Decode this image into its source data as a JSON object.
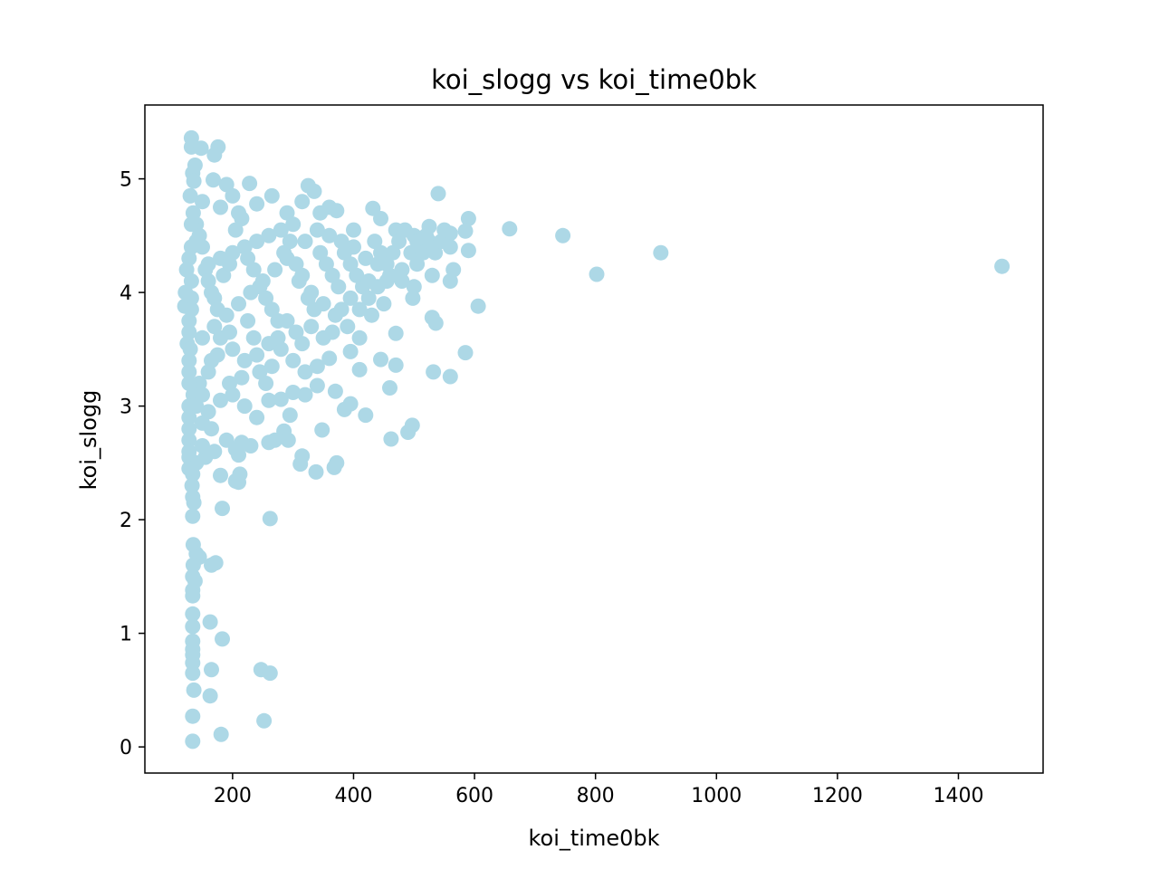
{
  "chart_data": {
    "type": "scatter",
    "title": "koi_slogg vs koi_time0bk",
    "xlabel": "koi_time0bk",
    "ylabel": "koi_slogg",
    "xlim": [
      55,
      1540
    ],
    "ylim": [
      -0.23,
      5.65
    ],
    "xticks": [
      200,
      400,
      600,
      800,
      1000,
      1200,
      1400
    ],
    "yticks": [
      0,
      1,
      2,
      3,
      4,
      5
    ],
    "grid": false,
    "legend": "none",
    "marker_color": "#add8e6",
    "points": [
      [
        132,
        5.36
      ],
      [
        132,
        5.28
      ],
      [
        148,
        5.27
      ],
      [
        176,
        5.28
      ],
      [
        170,
        5.21
      ],
      [
        138,
        5.12
      ],
      [
        134,
        5.05
      ],
      [
        136,
        4.98
      ],
      [
        168,
        4.99
      ],
      [
        190,
        4.95
      ],
      [
        228,
        4.96
      ],
      [
        200,
        4.85
      ],
      [
        150,
        4.8
      ],
      [
        180,
        4.75
      ],
      [
        210,
        4.7
      ],
      [
        240,
        4.78
      ],
      [
        265,
        4.85
      ],
      [
        290,
        4.7
      ],
      [
        325,
        4.94
      ],
      [
        335,
        4.89
      ],
      [
        315,
        4.8
      ],
      [
        345,
        4.7
      ],
      [
        360,
        4.75
      ],
      [
        372,
        4.72
      ],
      [
        400,
        4.55
      ],
      [
        432,
        4.74
      ],
      [
        445,
        4.65
      ],
      [
        470,
        4.55
      ],
      [
        500,
        4.5
      ],
      [
        525,
        4.58
      ],
      [
        540,
        4.87
      ],
      [
        560,
        4.52
      ],
      [
        590,
        4.65
      ],
      [
        585,
        4.54
      ],
      [
        560,
        4.4
      ],
      [
        590,
        4.37
      ],
      [
        658,
        4.56
      ],
      [
        746,
        4.5
      ],
      [
        802,
        4.16
      ],
      [
        908,
        4.35
      ],
      [
        1472,
        4.23
      ],
      [
        565,
        4.2
      ],
      [
        560,
        4.1
      ],
      [
        530,
        4.15
      ],
      [
        500,
        4.05
      ],
      [
        480,
        4.2
      ],
      [
        460,
        4.15
      ],
      [
        440,
        4.25
      ],
      [
        420,
        4.3
      ],
      [
        400,
        4.4
      ],
      [
        380,
        4.45
      ],
      [
        360,
        4.5
      ],
      [
        340,
        4.55
      ],
      [
        320,
        4.45
      ],
      [
        300,
        4.6
      ],
      [
        280,
        4.55
      ],
      [
        260,
        4.5
      ],
      [
        240,
        4.45
      ],
      [
        220,
        4.4
      ],
      [
        200,
        4.35
      ],
      [
        180,
        4.3
      ],
      [
        160,
        4.25
      ],
      [
        140,
        4.45
      ],
      [
        128,
        4.3
      ],
      [
        124,
        4.2
      ],
      [
        122,
        4.0
      ],
      [
        121,
        3.88
      ],
      [
        125,
        3.55
      ],
      [
        130,
        3.5
      ],
      [
        150,
        3.6
      ],
      [
        170,
        3.7
      ],
      [
        190,
        3.8
      ],
      [
        210,
        3.9
      ],
      [
        230,
        4.0
      ],
      [
        250,
        4.1
      ],
      [
        270,
        4.2
      ],
      [
        290,
        4.3
      ],
      [
        310,
        4.1
      ],
      [
        330,
        4.0
      ],
      [
        350,
        3.9
      ],
      [
        370,
        3.8
      ],
      [
        390,
        3.7
      ],
      [
        410,
        3.6
      ],
      [
        430,
        3.8
      ],
      [
        450,
        3.9
      ],
      [
        470,
        3.64
      ],
      [
        498,
        3.95
      ],
      [
        530,
        3.78
      ],
      [
        536,
        3.73
      ],
      [
        606,
        3.88
      ],
      [
        585,
        3.47
      ],
      [
        560,
        3.26
      ],
      [
        532,
        3.3
      ],
      [
        470,
        3.36
      ],
      [
        445,
        3.41
      ],
      [
        410,
        3.32
      ],
      [
        395,
        3.48
      ],
      [
        360,
        3.42
      ],
      [
        340,
        3.35
      ],
      [
        320,
        3.3
      ],
      [
        300,
        3.4
      ],
      [
        280,
        3.5
      ],
      [
        260,
        3.55
      ],
      [
        240,
        3.45
      ],
      [
        220,
        3.4
      ],
      [
        200,
        3.5
      ],
      [
        175,
        3.45
      ],
      [
        160,
        3.3
      ],
      [
        145,
        3.2
      ],
      [
        135,
        3.1
      ],
      [
        140,
        3.0
      ],
      [
        160,
        2.95
      ],
      [
        180,
        3.05
      ],
      [
        200,
        3.1
      ],
      [
        220,
        3.0
      ],
      [
        240,
        2.9
      ],
      [
        260,
        3.05
      ],
      [
        280,
        3.06
      ],
      [
        300,
        3.12
      ],
      [
        320,
        3.1
      ],
      [
        340,
        3.18
      ],
      [
        370,
        3.13
      ],
      [
        385,
        2.97
      ],
      [
        395,
        3.02
      ],
      [
        420,
        2.92
      ],
      [
        460,
        3.16
      ],
      [
        490,
        2.77
      ],
      [
        497,
        2.83
      ],
      [
        462,
        2.71
      ],
      [
        295,
        2.92
      ],
      [
        285,
        2.78
      ],
      [
        292,
        2.7
      ],
      [
        270,
        2.7
      ],
      [
        260,
        2.68
      ],
      [
        230,
        2.65
      ],
      [
        215,
        2.68
      ],
      [
        205,
        2.62
      ],
      [
        190,
        2.7
      ],
      [
        170,
        2.6
      ],
      [
        155,
        2.55
      ],
      [
        140,
        2.5
      ],
      [
        134,
        2.4
      ],
      [
        133,
        2.3
      ],
      [
        134,
        2.2
      ],
      [
        136,
        2.15
      ],
      [
        134,
        2.03
      ],
      [
        183,
        2.1
      ],
      [
        262,
        2.01
      ],
      [
        210,
        2.57
      ],
      [
        212,
        2.4
      ],
      [
        205,
        2.34
      ],
      [
        210,
        2.33
      ],
      [
        180,
        2.39
      ],
      [
        348,
        2.79
      ],
      [
        315,
        2.56
      ],
      [
        312,
        2.49
      ],
      [
        338,
        2.42
      ],
      [
        368,
        2.46
      ],
      [
        372,
        2.5
      ],
      [
        135,
        1.78
      ],
      [
        140,
        1.7
      ],
      [
        145,
        1.67
      ],
      [
        135,
        1.6
      ],
      [
        134,
        1.5
      ],
      [
        138,
        1.46
      ],
      [
        134,
        1.38
      ],
      [
        134,
        1.33
      ],
      [
        165,
        1.6
      ],
      [
        172,
        1.62
      ],
      [
        134,
        1.17
      ],
      [
        134,
        1.06
      ],
      [
        163,
        1.1
      ],
      [
        134,
        0.93
      ],
      [
        134,
        0.86
      ],
      [
        134,
        0.81
      ],
      [
        134,
        0.74
      ],
      [
        134,
        0.65
      ],
      [
        183,
        0.95
      ],
      [
        165,
        0.68
      ],
      [
        247,
        0.68
      ],
      [
        262,
        0.65
      ],
      [
        136,
        0.5
      ],
      [
        163,
        0.45
      ],
      [
        134,
        0.27
      ],
      [
        252,
        0.23
      ],
      [
        181,
        0.11
      ],
      [
        134,
        0.05
      ],
      [
        130,
        4.85
      ],
      [
        135,
        4.7
      ],
      [
        140,
        4.6
      ],
      [
        145,
        4.5
      ],
      [
        150,
        4.4
      ],
      [
        155,
        4.2
      ],
      [
        160,
        4.1
      ],
      [
        165,
        4.0
      ],
      [
        170,
        3.95
      ],
      [
        175,
        3.85
      ],
      [
        185,
        4.15
      ],
      [
        195,
        4.25
      ],
      [
        205,
        4.55
      ],
      [
        215,
        4.65
      ],
      [
        225,
        4.3
      ],
      [
        235,
        4.2
      ],
      [
        245,
        4.05
      ],
      [
        255,
        3.95
      ],
      [
        265,
        3.85
      ],
      [
        275,
        3.75
      ],
      [
        285,
        4.35
      ],
      [
        295,
        4.45
      ],
      [
        305,
        4.25
      ],
      [
        315,
        4.15
      ],
      [
        325,
        3.95
      ],
      [
        335,
        3.85
      ],
      [
        345,
        4.35
      ],
      [
        355,
        4.25
      ],
      [
        365,
        4.15
      ],
      [
        375,
        4.05
      ],
      [
        385,
        4.35
      ],
      [
        395,
        4.25
      ],
      [
        405,
        4.15
      ],
      [
        415,
        4.05
      ],
      [
        425,
        3.95
      ],
      [
        435,
        4.45
      ],
      [
        445,
        4.35
      ],
      [
        455,
        4.25
      ],
      [
        465,
        4.35
      ],
      [
        475,
        4.45
      ],
      [
        485,
        4.55
      ],
      [
        495,
        4.35
      ],
      [
        505,
        4.45
      ],
      [
        515,
        4.35
      ],
      [
        525,
        4.45
      ],
      [
        535,
        4.35
      ],
      [
        545,
        4.45
      ],
      [
        128,
        3.75
      ],
      [
        128,
        3.65
      ],
      [
        128,
        3.4
      ],
      [
        128,
        3.3
      ],
      [
        128,
        3.2
      ],
      [
        128,
        3.0
      ],
      [
        128,
        2.9
      ],
      [
        128,
        2.8
      ],
      [
        128,
        2.7
      ],
      [
        128,
        2.6
      ],
      [
        128,
        2.55
      ],
      [
        128,
        2.45
      ],
      [
        132,
        4.6
      ],
      [
        132,
        4.4
      ],
      [
        132,
        4.1
      ],
      [
        132,
        3.95
      ],
      [
        132,
        3.85
      ],
      [
        150,
        3.1
      ],
      [
        150,
        2.85
      ],
      [
        150,
        2.65
      ],
      [
        165,
        2.8
      ],
      [
        165,
        3.4
      ],
      [
        180,
        3.6
      ],
      [
        195,
        3.2
      ],
      [
        195,
        3.65
      ],
      [
        215,
        3.25
      ],
      [
        225,
        3.75
      ],
      [
        235,
        3.6
      ],
      [
        245,
        3.3
      ],
      [
        255,
        3.2
      ],
      [
        265,
        3.35
      ],
      [
        275,
        3.6
      ],
      [
        290,
        3.75
      ],
      [
        305,
        3.65
      ],
      [
        315,
        3.55
      ],
      [
        330,
        3.7
      ],
      [
        350,
        3.6
      ],
      [
        365,
        3.65
      ],
      [
        380,
        3.85
      ],
      [
        395,
        3.95
      ],
      [
        410,
        3.85
      ],
      [
        425,
        4.1
      ],
      [
        440,
        4.05
      ],
      [
        455,
        4.1
      ],
      [
        480,
        4.1
      ],
      [
        505,
        4.25
      ],
      [
        520,
        4.5
      ],
      [
        550,
        4.55
      ]
    ]
  }
}
